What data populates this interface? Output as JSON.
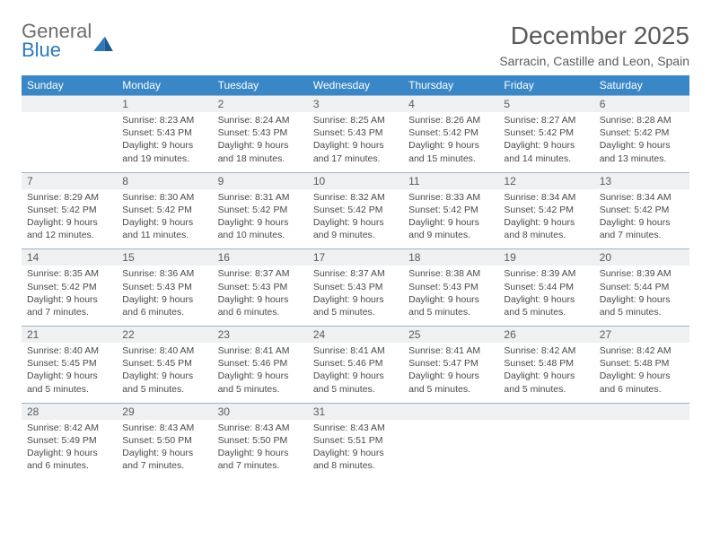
{
  "logo": {
    "general": "General",
    "blue": "Blue"
  },
  "title": "December 2025",
  "location": "Sarracin, Castille and Leon, Spain",
  "colors": {
    "header_bg": "#3a87c7",
    "header_text": "#ffffff",
    "daynum_bg": "#eef0f1",
    "daynum_border": "#9bb4c8",
    "body_text": "#4a4a4a",
    "logo_gray": "#6d6d6d",
    "logo_blue": "#2f79b9"
  },
  "weekdays": [
    "Sunday",
    "Monday",
    "Tuesday",
    "Wednesday",
    "Thursday",
    "Friday",
    "Saturday"
  ],
  "weeks": [
    [
      null,
      {
        "n": "1",
        "sr": "8:23 AM",
        "ss": "5:43 PM",
        "dl": "9 hours and 19 minutes."
      },
      {
        "n": "2",
        "sr": "8:24 AM",
        "ss": "5:43 PM",
        "dl": "9 hours and 18 minutes."
      },
      {
        "n": "3",
        "sr": "8:25 AM",
        "ss": "5:43 PM",
        "dl": "9 hours and 17 minutes."
      },
      {
        "n": "4",
        "sr": "8:26 AM",
        "ss": "5:42 PM",
        "dl": "9 hours and 15 minutes."
      },
      {
        "n": "5",
        "sr": "8:27 AM",
        "ss": "5:42 PM",
        "dl": "9 hours and 14 minutes."
      },
      {
        "n": "6",
        "sr": "8:28 AM",
        "ss": "5:42 PM",
        "dl": "9 hours and 13 minutes."
      }
    ],
    [
      {
        "n": "7",
        "sr": "8:29 AM",
        "ss": "5:42 PM",
        "dl": "9 hours and 12 minutes."
      },
      {
        "n": "8",
        "sr": "8:30 AM",
        "ss": "5:42 PM",
        "dl": "9 hours and 11 minutes."
      },
      {
        "n": "9",
        "sr": "8:31 AM",
        "ss": "5:42 PM",
        "dl": "9 hours and 10 minutes."
      },
      {
        "n": "10",
        "sr": "8:32 AM",
        "ss": "5:42 PM",
        "dl": "9 hours and 9 minutes."
      },
      {
        "n": "11",
        "sr": "8:33 AM",
        "ss": "5:42 PM",
        "dl": "9 hours and 9 minutes."
      },
      {
        "n": "12",
        "sr": "8:34 AM",
        "ss": "5:42 PM",
        "dl": "9 hours and 8 minutes."
      },
      {
        "n": "13",
        "sr": "8:34 AM",
        "ss": "5:42 PM",
        "dl": "9 hours and 7 minutes."
      }
    ],
    [
      {
        "n": "14",
        "sr": "8:35 AM",
        "ss": "5:42 PM",
        "dl": "9 hours and 7 minutes."
      },
      {
        "n": "15",
        "sr": "8:36 AM",
        "ss": "5:43 PM",
        "dl": "9 hours and 6 minutes."
      },
      {
        "n": "16",
        "sr": "8:37 AM",
        "ss": "5:43 PM",
        "dl": "9 hours and 6 minutes."
      },
      {
        "n": "17",
        "sr": "8:37 AM",
        "ss": "5:43 PM",
        "dl": "9 hours and 5 minutes."
      },
      {
        "n": "18",
        "sr": "8:38 AM",
        "ss": "5:43 PM",
        "dl": "9 hours and 5 minutes."
      },
      {
        "n": "19",
        "sr": "8:39 AM",
        "ss": "5:44 PM",
        "dl": "9 hours and 5 minutes."
      },
      {
        "n": "20",
        "sr": "8:39 AM",
        "ss": "5:44 PM",
        "dl": "9 hours and 5 minutes."
      }
    ],
    [
      {
        "n": "21",
        "sr": "8:40 AM",
        "ss": "5:45 PM",
        "dl": "9 hours and 5 minutes."
      },
      {
        "n": "22",
        "sr": "8:40 AM",
        "ss": "5:45 PM",
        "dl": "9 hours and 5 minutes."
      },
      {
        "n": "23",
        "sr": "8:41 AM",
        "ss": "5:46 PM",
        "dl": "9 hours and 5 minutes."
      },
      {
        "n": "24",
        "sr": "8:41 AM",
        "ss": "5:46 PM",
        "dl": "9 hours and 5 minutes."
      },
      {
        "n": "25",
        "sr": "8:41 AM",
        "ss": "5:47 PM",
        "dl": "9 hours and 5 minutes."
      },
      {
        "n": "26",
        "sr": "8:42 AM",
        "ss": "5:48 PM",
        "dl": "9 hours and 5 minutes."
      },
      {
        "n": "27",
        "sr": "8:42 AM",
        "ss": "5:48 PM",
        "dl": "9 hours and 6 minutes."
      }
    ],
    [
      {
        "n": "28",
        "sr": "8:42 AM",
        "ss": "5:49 PM",
        "dl": "9 hours and 6 minutes."
      },
      {
        "n": "29",
        "sr": "8:43 AM",
        "ss": "5:50 PM",
        "dl": "9 hours and 7 minutes."
      },
      {
        "n": "30",
        "sr": "8:43 AM",
        "ss": "5:50 PM",
        "dl": "9 hours and 7 minutes."
      },
      {
        "n": "31",
        "sr": "8:43 AM",
        "ss": "5:51 PM",
        "dl": "9 hours and 8 minutes."
      },
      null,
      null,
      null
    ]
  ],
  "labels": {
    "sunrise": "Sunrise:",
    "sunset": "Sunset:",
    "daylight": "Daylight:"
  }
}
